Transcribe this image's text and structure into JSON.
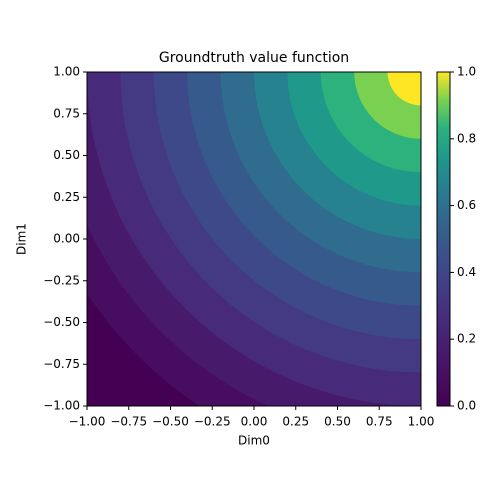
{
  "chart_data": {
    "type": "contourf",
    "title": "Groundtruth value function",
    "x_label": "Dim0",
    "y_label": "Dim1",
    "xlim": [
      -1,
      1
    ],
    "ylim": [
      -1,
      1
    ],
    "xticks": [
      {
        "value": -1,
        "label": "−1.00"
      },
      {
        "value": -0.75,
        "label": "−0.75"
      },
      {
        "value": -0.5,
        "label": "−0.50"
      },
      {
        "value": -0.25,
        "label": "−0.25"
      },
      {
        "value": 0,
        "label": "0.00"
      },
      {
        "value": 0.25,
        "label": "0.25"
      },
      {
        "value": 0.5,
        "label": "0.50"
      },
      {
        "value": 0.75,
        "label": "0.75"
      },
      {
        "value": 1,
        "label": "1.00"
      }
    ],
    "yticks": [
      {
        "value": -1,
        "label": "−1.00"
      },
      {
        "value": -0.75,
        "label": "−0.75"
      },
      {
        "value": -0.5,
        "label": "−0.50"
      },
      {
        "value": -0.25,
        "label": "−0.25"
      },
      {
        "value": 0,
        "label": "0.00"
      },
      {
        "value": 0.25,
        "label": "0.25"
      },
      {
        "value": 0.5,
        "label": "0.50"
      },
      {
        "value": 0.75,
        "label": "0.75"
      },
      {
        "value": 1,
        "label": "1.00"
      }
    ],
    "center": [
      1,
      1
    ],
    "band_radii": [
      0.2,
      0.4,
      0.6,
      0.8,
      1.0,
      1.2,
      1.4,
      1.6,
      1.8,
      2.0,
      2.2,
      2.4
    ],
    "band_colors": [
      "#fde725",
      "#7ad151",
      "#2db27d",
      "#1f9a8a",
      "#26828e",
      "#2f6c8e",
      "#375a8c",
      "#3e4989",
      "#443983",
      "#472a7a",
      "#481a6c",
      "#470d60",
      "#440154"
    ],
    "colorbar_lim": [
      0,
      1
    ],
    "colorbar_ticks": [
      {
        "value": 0,
        "label": "0.0"
      },
      {
        "value": 0.2,
        "label": "0.2"
      },
      {
        "value": 0.4,
        "label": "0.4"
      },
      {
        "value": 0.6,
        "label": "0.6"
      },
      {
        "value": 0.8,
        "label": "0.8"
      },
      {
        "value": 1,
        "label": "1.0"
      }
    ]
  }
}
